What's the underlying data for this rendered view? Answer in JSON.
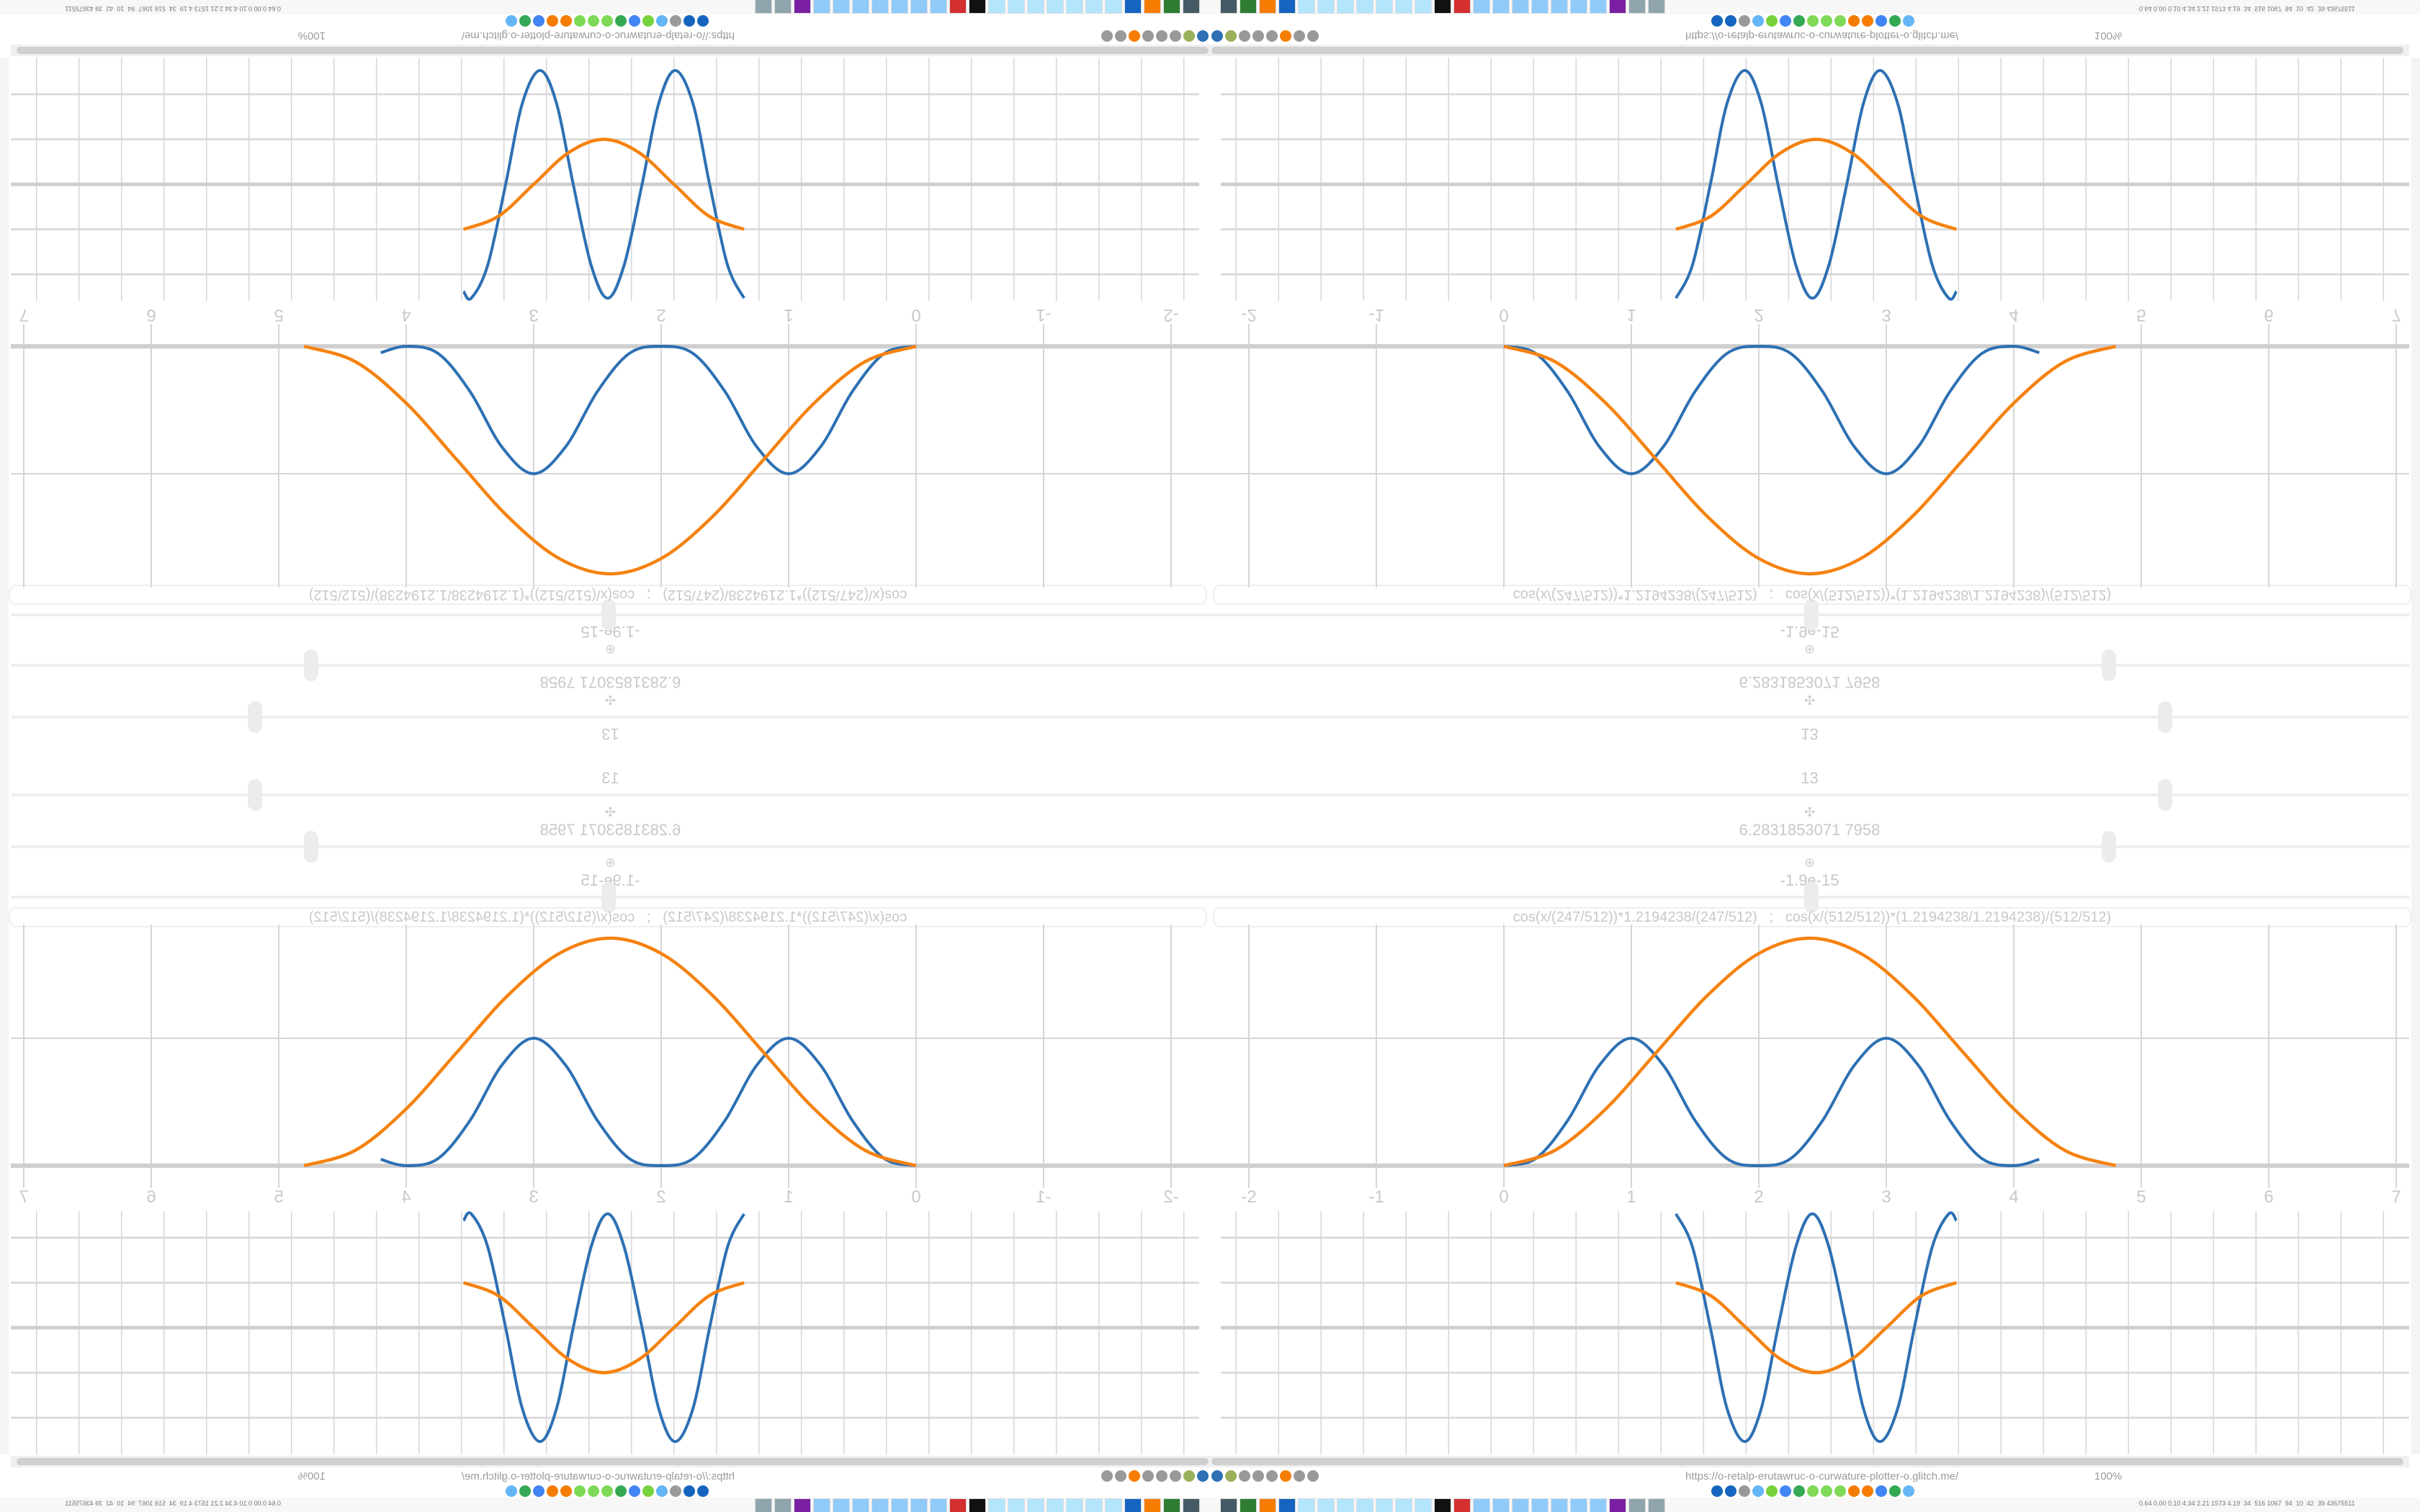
{
  "sliders": [
    {
      "value": "13",
      "icon": "settings-icon",
      "level": 0.85
    },
    {
      "value": "6.2831853071 7958",
      "icon": "move-icon",
      "level": 0.8
    },
    {
      "value": "-1.9e-15",
      "icon": "pin-icon",
      "level": 0.535
    }
  ],
  "slider_top_label": "13",
  "expression": "cos(x/(247/512))*1.2194238/(247/512)   ;   cos(x/(512/512))*(1.2194238/1.2194238)/(512/512)",
  "browser": {
    "url": "https://o-retalp-erutawruc-o-curwature-plotter-o.glitch.me/",
    "zoom": "100%",
    "tray_text": "0.64 0.00 0.10 4.34 2.21 1573 4.19  34  516 1067  94  10  42  39 43675511"
  },
  "colors": {
    "blue": "#2d70b3",
    "orange": "#f5820f",
    "grid": "#d6d6d6",
    "axis": "#cfcfcf"
  },
  "toolbar_icons": [
    "#2d70b3",
    "#9ab05a",
    "#999",
    "#999",
    "#999",
    "#f57c00",
    "#999",
    "#999"
  ],
  "bookmark_icons": [
    "#1565c0",
    "#1565c0",
    "#999",
    "#64b5f6",
    "#76d23c",
    "#4285f4",
    "#34a853",
    "#7ed957",
    "#7ed957",
    "#7ed957",
    "#f57c00",
    "#f57c00",
    "#4285f4",
    "#34a853",
    "#64b5f6"
  ],
  "taskbar_icons": [
    "#455a64",
    "#2e7d32",
    "#f57c00",
    "#1565c0",
    "#b3e5fc",
    "#b3e5fc",
    "#b3e5fc",
    "#b3e5fc",
    "#b3e5fc",
    "#b3e5fc",
    "#b3e5fc",
    "#111",
    "#d32f2f",
    "#90caf9",
    "#90caf9",
    "#90caf9",
    "#90caf9",
    "#90caf9",
    "#90caf9",
    "#90caf9",
    "#7b1fa2",
    "#90a4ae",
    "#90a4ae"
  ],
  "chart_data": [
    {
      "type": "line",
      "xlim": [
        -2,
        7
      ],
      "x_ticks": [
        "-2",
        "-1",
        "0",
        "1",
        "2",
        "3",
        "4",
        "5",
        "6",
        "7"
      ],
      "grid": true,
      "series": [
        {
          "color": "#2d70b3",
          "x": [
            0,
            0.25,
            0.5,
            0.75,
            1,
            1.25,
            1.5,
            1.75,
            2,
            2.25,
            2.5,
            2.75,
            3,
            3.25,
            3.5,
            3.75,
            4,
            4.2
          ],
          "y": [
            0,
            0.056,
            0.354,
            0.789,
            1,
            0.789,
            0.354,
            0.056,
            0,
            0.056,
            0.354,
            0.789,
            1,
            0.789,
            0.354,
            0.056,
            0,
            0.05
          ]
        },
        {
          "color": "#f5820f",
          "x": [
            0,
            0.4,
            0.8,
            1.2,
            1.6,
            2.0,
            2.4,
            2.8,
            3.2,
            3.6,
            4.0,
            4.4,
            4.8
          ],
          "y": [
            0,
            0.12,
            0.446,
            0.893,
            1.339,
            1.665,
            1.785,
            1.665,
            1.339,
            0.893,
            0.446,
            0.12,
            0
          ]
        }
      ]
    },
    {
      "type": "line",
      "xlim": [
        -2,
        7
      ],
      "x_ticks": [
        "-2",
        "-1",
        "0",
        "1",
        "2",
        "3",
        "4",
        "5",
        "6",
        "7"
      ],
      "grid": true,
      "series": [
        {
          "color": "#2d70b3",
          "x": [
            1.35,
            1.48,
            1.62,
            1.75,
            1.89,
            2.02,
            2.15,
            2.29,
            2.42,
            2.55,
            2.69,
            2.82,
            2.95,
            3.09,
            3.22,
            3.36,
            3.49,
            3.55
          ],
          "y": [
            2.53,
            1.79,
            0,
            -1.79,
            -2.53,
            -1.79,
            0,
            1.79,
            2.53,
            1.79,
            0,
            -1.79,
            -2.53,
            -1.79,
            0,
            1.79,
            2.53,
            2.38
          ]
        },
        {
          "color": "#f5820f",
          "x": [
            1.35,
            1.625,
            1.9,
            2.175,
            2.45,
            2.725,
            3.0,
            3.275,
            3.55
          ],
          "y": [
            1,
            0.707,
            0,
            -0.707,
            -1,
            -0.707,
            0,
            0.707,
            1
          ]
        }
      ]
    }
  ]
}
